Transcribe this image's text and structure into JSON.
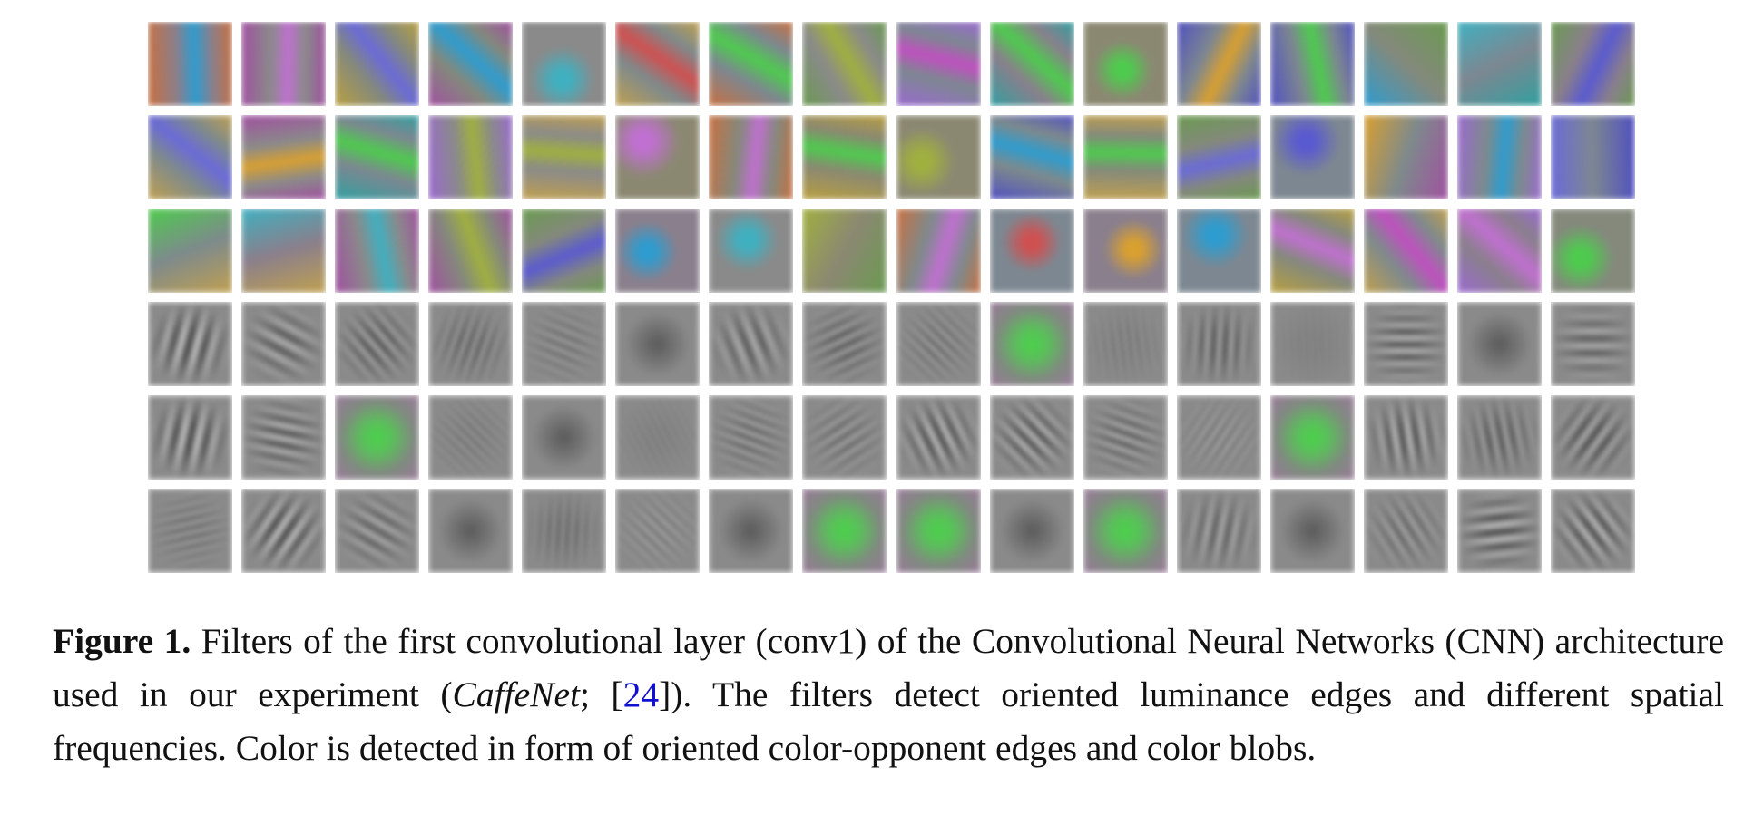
{
  "figure": {
    "grid": {
      "rows": 6,
      "cols": 16
    },
    "caption": {
      "label": "Figure 1.",
      "text_1": " Filters of the first convolutional layer (conv1) of the Convolutional Neural Networks (CNN) architecture used in our experiment (",
      "network_name": "CaffeNet",
      "text_2": "; [",
      "reference": "24",
      "text_3": "]).  The filters detect oriented luminance edges and different spatial frequencies.  Color is detected in form of oriented color-opponent edges and color blobs."
    }
  }
}
